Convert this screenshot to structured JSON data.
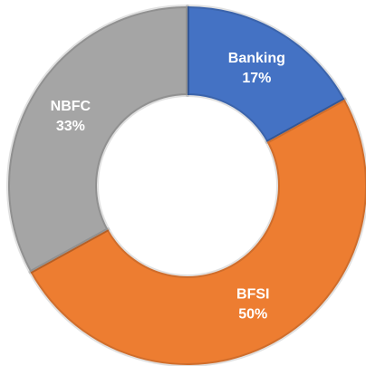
{
  "chart_data": {
    "type": "donut",
    "categories": [
      "Banking",
      "BFSI",
      "NBFC"
    ],
    "values": [
      17,
      50,
      33
    ],
    "value_labels": [
      "17%",
      "50%",
      "33%"
    ],
    "colors": [
      "#4472c4",
      "#ed7d31",
      "#a5a5a5"
    ]
  }
}
